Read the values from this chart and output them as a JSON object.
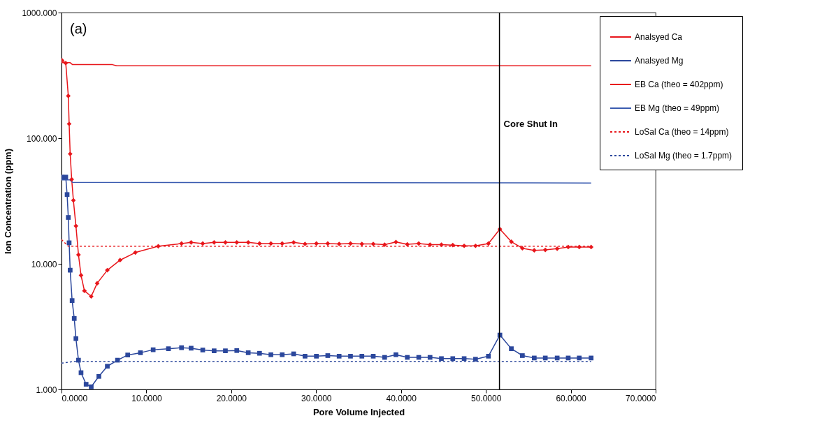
{
  "chart_data": {
    "type": "line",
    "xlabel": "Pore Volume Injected",
    "ylabel": "Ion Concentration (ppm)",
    "annotations": [
      "(a)"
    ],
    "log": "y",
    "grid": false,
    "legend": "top right",
    "xlim": [
      0,
      70
    ],
    "xticks": [
      {
        "value": 0,
        "label": "0.0000"
      },
      {
        "value": 10,
        "label": "10.0000"
      },
      {
        "value": 20,
        "label": "20.0000"
      },
      {
        "value": 30,
        "label": "30.0000"
      },
      {
        "value": 40,
        "label": "40.0000"
      },
      {
        "value": 50,
        "label": "50.0000"
      },
      {
        "value": 60,
        "label": "60.0000"
      },
      {
        "value": 70,
        "label": "70.0000"
      }
    ],
    "ylim": [
      1,
      1000
    ],
    "yticks": [
      {
        "value": 1,
        "label": "1.000"
      },
      {
        "value": 10,
        "label": "10.000"
      },
      {
        "value": 100,
        "label": "100.000"
      },
      {
        "value": 1000,
        "label": "1000.000"
      }
    ],
    "ref_lines": [
      {
        "axis": "x",
        "value": 51.6,
        "label": "Core Shut In",
        "color": "#000000"
      }
    ],
    "series": [
      {
        "name": "Analsyed Ca",
        "color": "#e8161b",
        "marker": "diamond",
        "line_style": "solid",
        "x": [
          0.06,
          0.5,
          0.8,
          0.9,
          1.02,
          1.2,
          1.4,
          1.7,
          2.0,
          2.3,
          2.7,
          3.5,
          4.2,
          5.4,
          6.9,
          8.7,
          11.4,
          14.14,
          15.27,
          16.64,
          17.98,
          19.31,
          20.65,
          22.0,
          23.33,
          24.67,
          26.0,
          27.35,
          28.69,
          30.03,
          31.37,
          32.71,
          34.05,
          35.39,
          36.73,
          38.07,
          39.4,
          40.74,
          42.09,
          43.42,
          44.76,
          46.1,
          47.44,
          48.78,
          50.3,
          51.65,
          53.0,
          54.3,
          55.7,
          57.0,
          58.4,
          59.7,
          61.0,
          62.4
        ],
        "values": [
          417,
          396,
          217,
          130,
          75,
          47,
          32,
          20,
          11.8,
          8.1,
          6.1,
          5.5,
          7.0,
          8.9,
          10.7,
          12.3,
          13.8,
          14.5,
          14.8,
          14.5,
          14.8,
          14.8,
          14.8,
          14.8,
          14.5,
          14.5,
          14.5,
          14.8,
          14.4,
          14.5,
          14.5,
          14.4,
          14.5,
          14.4,
          14.4,
          14.2,
          14.9,
          14.3,
          14.5,
          14.2,
          14.2,
          14.1,
          13.9,
          13.9,
          14.5,
          18.9,
          15.0,
          13.3,
          12.8,
          12.9,
          13.2,
          13.6,
          13.6,
          13.6
        ]
      },
      {
        "name": "Analsyed Mg",
        "color": "#2b479c",
        "marker": "square",
        "line_style": "solid",
        "x": [
          0.06,
          0.5,
          0.66,
          0.8,
          0.9,
          1.02,
          1.25,
          1.5,
          1.7,
          2.0,
          2.3,
          2.9,
          3.5,
          4.4,
          5.4,
          6.6,
          7.8,
          9.3,
          10.8,
          12.6,
          14.14,
          15.27,
          16.64,
          17.98,
          19.31,
          20.65,
          22.0,
          23.33,
          24.67,
          26.0,
          27.35,
          28.69,
          30.03,
          31.37,
          32.71,
          34.05,
          35.39,
          36.73,
          38.07,
          39.4,
          40.74,
          42.09,
          43.42,
          44.76,
          46.1,
          47.44,
          48.78,
          50.3,
          51.65,
          53.0,
          54.3,
          55.7,
          57.0,
          58.4,
          59.7,
          61.0,
          62.4
        ],
        "values": [
          49,
          49,
          35.6,
          23.4,
          14.7,
          8.9,
          5.1,
          3.67,
          2.54,
          1.71,
          1.36,
          1.1,
          1.05,
          1.27,
          1.53,
          1.71,
          1.88,
          1.96,
          2.07,
          2.11,
          2.15,
          2.13,
          2.06,
          2.03,
          2.03,
          2.04,
          1.96,
          1.94,
          1.89,
          1.89,
          1.92,
          1.84,
          1.84,
          1.86,
          1.84,
          1.84,
          1.84,
          1.84,
          1.8,
          1.89,
          1.8,
          1.8,
          1.8,
          1.76,
          1.76,
          1.76,
          1.74,
          1.84,
          2.71,
          2.11,
          1.86,
          1.78,
          1.78,
          1.78,
          1.78,
          1.78,
          1.78
        ]
      },
      {
        "name": "EB Ca (theo = 402ppm)",
        "color": "#e8161b",
        "marker": "none",
        "line_style": "solid",
        "x": [
          0,
          1.0,
          1.3,
          6,
          6.5,
          62.4
        ],
        "values": [
          400,
          400,
          385,
          385,
          377,
          377
        ]
      },
      {
        "name": "EB Mg (theo = 49ppm)",
        "color": "#3a5bb0",
        "marker": "none",
        "line_style": "solid",
        "x": [
          0,
          1.0,
          1.3,
          62.4
        ],
        "values": [
          46.5,
          46.5,
          44.5,
          44
        ]
      },
      {
        "name": "LoSal Ca (theo = 14ppm)",
        "color": "#e8161b",
        "marker": "none",
        "line_style": "dotted",
        "x": [
          0,
          0.8,
          62.4
        ],
        "values": [
          15.6,
          13.8,
          13.8
        ]
      },
      {
        "name": "LoSal Mg (theo = 1.7ppm)",
        "color": "#2b479c",
        "marker": "none",
        "line_style": "dotted",
        "x": [
          0,
          1.5,
          62.4
        ],
        "values": [
          1.62,
          1.67,
          1.67
        ]
      }
    ]
  }
}
